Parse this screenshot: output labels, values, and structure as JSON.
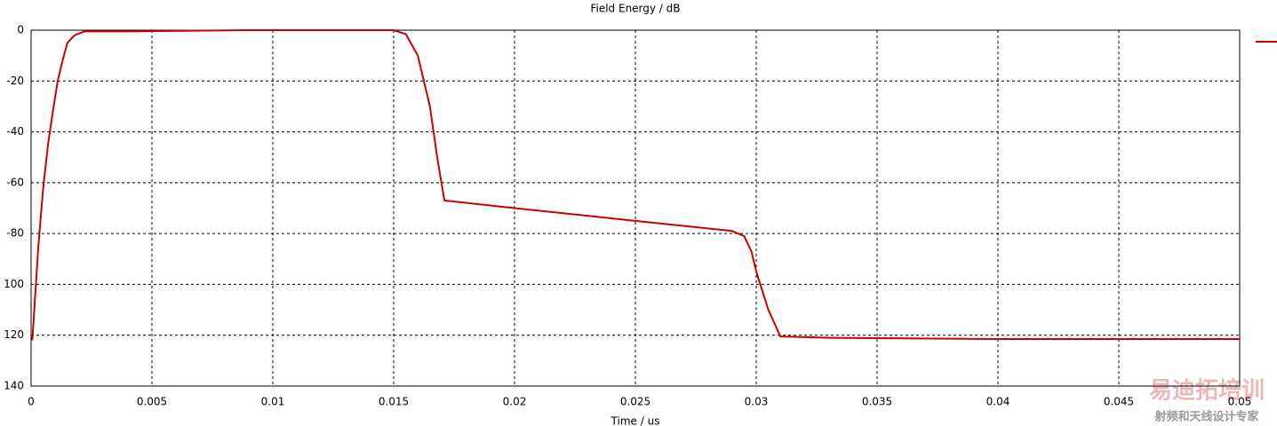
{
  "chart_data": {
    "type": "line",
    "title": "Field Energy / dB",
    "x_label": "Time / us",
    "x": [
      5e-05,
      0.0003,
      0.0005,
      0.0007,
      0.0009,
      0.0011,
      0.0013,
      0.0015,
      0.0018,
      0.0022,
      0.004,
      0.009,
      0.015,
      0.0155,
      0.016,
      0.0165,
      0.0168,
      0.0171,
      0.02,
      0.025,
      0.029,
      0.0295,
      0.0298,
      0.03,
      0.0305,
      0.031,
      0.033,
      0.04,
      0.05
    ],
    "series": [
      {
        "color": "#cc0000",
        "values": [
          -122,
          -85,
          -62,
          -45,
          -32,
          -20,
          -12,
          -5,
          -2,
          -0.5,
          -0.5,
          0,
          0,
          -1.5,
          -10,
          -30,
          -50,
          -67,
          -70,
          -75,
          -79,
          -81,
          -87,
          -95,
          -110,
          -120.5,
          -121,
          -121.5,
          -121.5
        ]
      }
    ],
    "xlim": [
      0,
      0.05
    ],
    "xticks": [
      0,
      0.005,
      0.01,
      0.015,
      0.02,
      0.025,
      0.03,
      0.035,
      0.04,
      0.045,
      0.05
    ],
    "ylim": [
      -140,
      0
    ],
    "yticks": [
      0,
      -20,
      -40,
      -60,
      -80,
      {
        "value": -100,
        "label": "100"
      },
      {
        "value": -120,
        "label": "120"
      },
      {
        "value": -140,
        "label": "140"
      }
    ],
    "grid": true,
    "watermark": "易迪拓培训",
    "watermark_subtitle": "射频和天线设计专家"
  }
}
